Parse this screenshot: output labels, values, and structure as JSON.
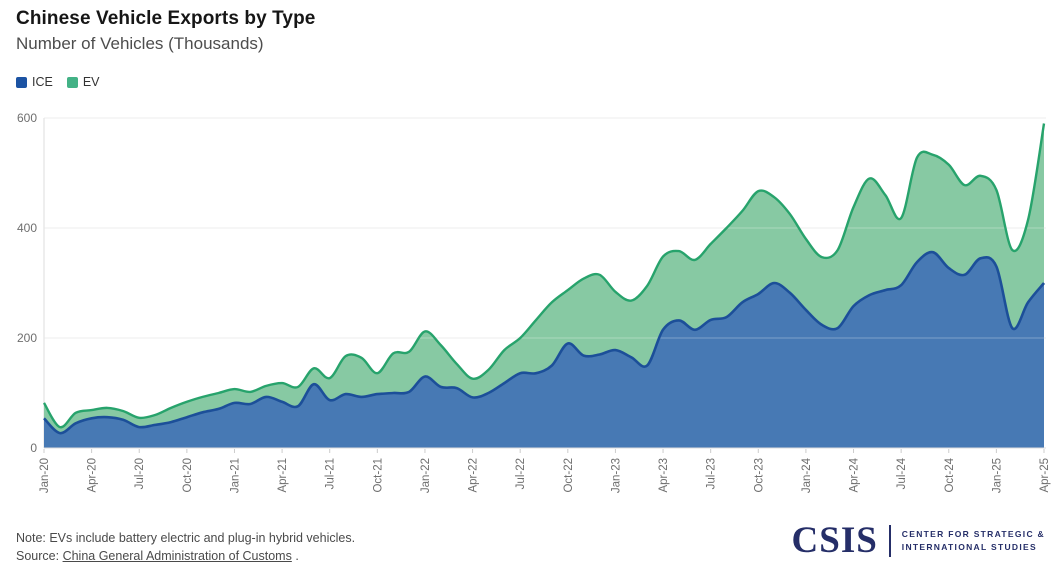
{
  "header": {
    "title": "Chinese Vehicle Exports by Type",
    "subtitle": "Number of Vehicles (Thousands)"
  },
  "legend": [
    {
      "label": "ICE",
      "color": "#1c53a3"
    },
    {
      "label": "EV",
      "color": "#43b286"
    }
  ],
  "chart_data": {
    "type": "area",
    "stacked": true,
    "title": "Chinese Vehicle Exports by Type",
    "ylabel": "Number of Vehicles (Thousands)",
    "xlabel": "",
    "ylim": [
      0,
      600
    ],
    "yticks": [
      0,
      200,
      400,
      600
    ],
    "grid": true,
    "legend_position": "top-left",
    "xtick_every": 3,
    "categories": [
      "Jan-20",
      "Feb-20",
      "Mar-20",
      "Apr-20",
      "May-20",
      "Jun-20",
      "Jul-20",
      "Aug-20",
      "Sep-20",
      "Oct-20",
      "Nov-20",
      "Dec-20",
      "Jan-21",
      "Feb-21",
      "Mar-21",
      "Apr-21",
      "May-21",
      "Jun-21",
      "Jul-21",
      "Aug-21",
      "Sep-21",
      "Oct-21",
      "Nov-21",
      "Dec-21",
      "Jan-22",
      "Feb-22",
      "Mar-22",
      "Apr-22",
      "May-22",
      "Jun-22",
      "Jul-22",
      "Aug-22",
      "Sep-22",
      "Oct-22",
      "Nov-22",
      "Dec-22",
      "Jan-23",
      "Feb-23",
      "Mar-23",
      "Apr-23",
      "May-23",
      "Jun-23",
      "Jul-23",
      "Aug-23",
      "Sep-23",
      "Oct-23",
      "Nov-23",
      "Dec-23",
      "Jan-24",
      "Feb-24",
      "Mar-24",
      "Apr-24",
      "May-24",
      "Jun-24",
      "Jul-24",
      "Aug-24",
      "Sep-24",
      "Oct-24",
      "Nov-24",
      "Dec-24",
      "Jan-25",
      "Feb-25",
      "Mar-25",
      "Apr-25"
    ],
    "series": [
      {
        "name": "ICE",
        "fill": "#4779b4",
        "stroke": "#1c4f99",
        "values": [
          54,
          27,
          45,
          54,
          56,
          51,
          38,
          42,
          47,
          56,
          65,
          71,
          82,
          80,
          93,
          84,
          76,
          116,
          87,
          98,
          93,
          98,
          100,
          102,
          130,
          111,
          109,
          92,
          100,
          118,
          136,
          136,
          150,
          190,
          168,
          170,
          178,
          165,
          150,
          215,
          232,
          215,
          233,
          238,
          265,
          280,
          300,
          282,
          251,
          224,
          218,
          258,
          278,
          287,
          296,
          338,
          356,
          327,
          315,
          345,
          330,
          218,
          265,
          300
        ]
      },
      {
        "name": "EV",
        "fill": "#87c9a3",
        "stroke": "#27a36c",
        "values": [
          28,
          11,
          19,
          15,
          17,
          16,
          17,
          18,
          26,
          28,
          28,
          29,
          25,
          22,
          20,
          34,
          35,
          29,
          40,
          69,
          71,
          38,
          72,
          73,
          82,
          76,
          44,
          34,
          42,
          60,
          64,
          97,
          115,
          97,
          140,
          145,
          106,
          103,
          145,
          133,
          126,
          127,
          138,
          162,
          166,
          187,
          156,
          143,
          129,
          123,
          142,
          180,
          212,
          173,
          122,
          190,
          177,
          188,
          163,
          150,
          139,
          142,
          150,
          290
        ]
      }
    ]
  },
  "footer": {
    "note": "Note: EVs include battery electric and plug-in hybrid vehicles.",
    "source_prefix": "Source: ",
    "source_link": "China General Administration of Customs",
    "source_suffix": " .",
    "logo": {
      "acronym": "CSIS",
      "tagline_line1": "CENTER FOR STRATEGIC &",
      "tagline_line2": "INTERNATIONAL STUDIES"
    }
  }
}
